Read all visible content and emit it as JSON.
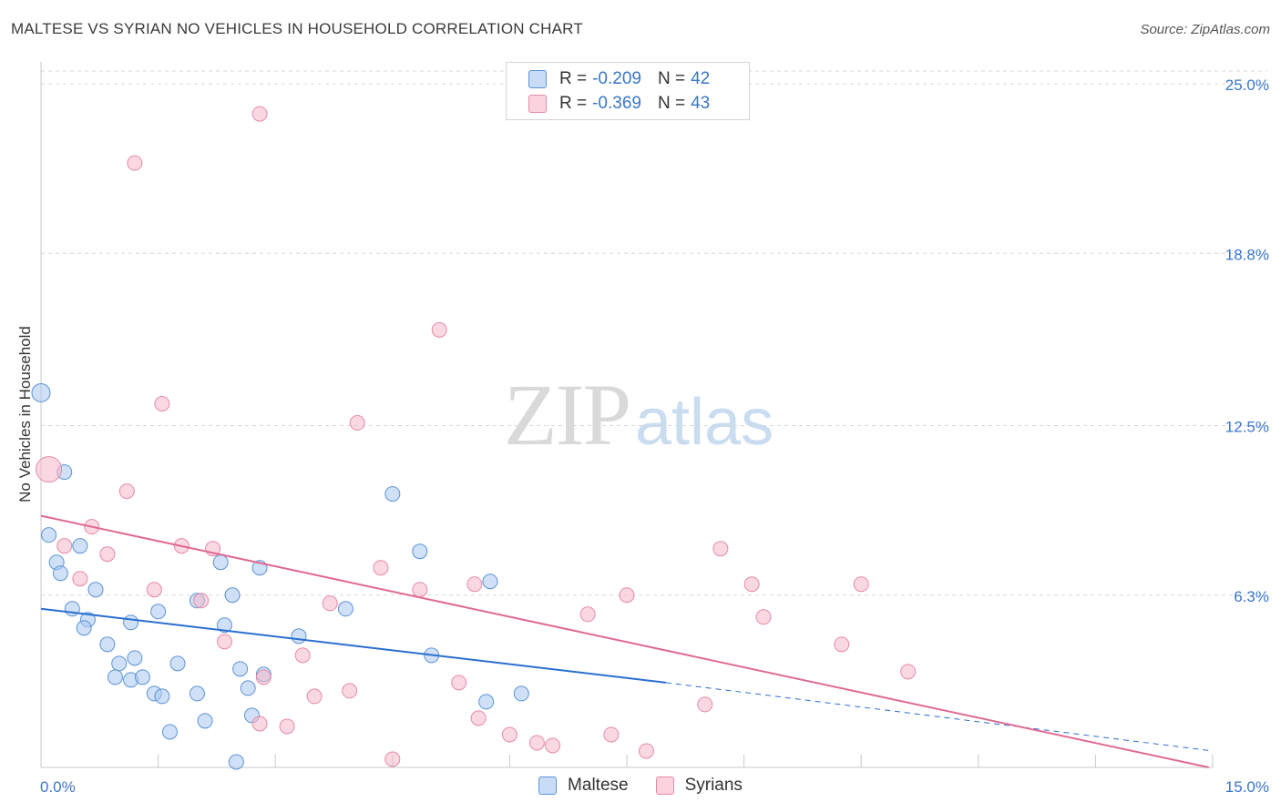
{
  "header": {
    "title": "MALTESE VS SYRIAN NO VEHICLES IN HOUSEHOLD CORRELATION CHART",
    "source": "Source: ZipAtlas.com"
  },
  "watermark": {
    "zip": "ZIP",
    "atlas": "atlas"
  },
  "legend": {
    "r_label": "R =",
    "n_label": "N =",
    "rows": [
      {
        "r": "-0.209",
        "n": "42",
        "color": "#a9c8f0"
      },
      {
        "r": "-0.369",
        "n": "43",
        "color": "#f6b8cb"
      }
    ]
  },
  "bottom_legend": {
    "items": [
      {
        "label": "Maltese",
        "color": "#a9c8f0"
      },
      {
        "label": "Syrians",
        "color": "#f6b8cb"
      }
    ]
  },
  "colors": {
    "maltese_fill": "#a9c8f0",
    "maltese_stroke": "#5b93d6",
    "maltese_line": "#2a6fd0",
    "syrian_fill": "#f6b8cb",
    "syrian_stroke": "#e68aa6",
    "syrian_line": "#e06a92",
    "tick_label": "#3a76c8",
    "grid": "#d8d8d8"
  },
  "chart_data": {
    "type": "scatter",
    "title": "MALTESE VS SYRIAN NO VEHICLES IN HOUSEHOLD CORRELATION CHART",
    "xlabel": "",
    "ylabel": "No Vehicles in Household",
    "xlim": [
      0,
      15
    ],
    "ylim": [
      0,
      25.8
    ],
    "x_tick_labels": [
      "0.0%",
      "15.0%"
    ],
    "y_ticks": [
      6.3,
      12.5,
      18.8,
      25.0
    ],
    "y_tick_labels": [
      "6.3%",
      "12.5%",
      "18.8%",
      "25.0%"
    ],
    "grid": "horizontal dashed",
    "legend_position": "top-center",
    "series": [
      {
        "name": "Maltese",
        "trend": {
          "x": [
            0,
            8.0
          ],
          "y": [
            5.8,
            3.1
          ],
          "dashed_to": [
            15,
            0.6
          ]
        },
        "points": [
          [
            0.0,
            13.7,
            10
          ],
          [
            0.3,
            10.8,
            8
          ],
          [
            0.1,
            8.5,
            8
          ],
          [
            0.5,
            8.1,
            8
          ],
          [
            0.2,
            7.5,
            8
          ],
          [
            0.25,
            7.1,
            8
          ],
          [
            0.7,
            6.5,
            8
          ],
          [
            0.4,
            5.8,
            8
          ],
          [
            0.6,
            5.4,
            8
          ],
          [
            0.55,
            5.1,
            8
          ],
          [
            0.85,
            4.5,
            8
          ],
          [
            1.15,
            5.3,
            8
          ],
          [
            1.5,
            5.7,
            8
          ],
          [
            2.0,
            6.1,
            8
          ],
          [
            2.3,
            7.5,
            8
          ],
          [
            2.45,
            6.3,
            8
          ],
          [
            2.8,
            7.3,
            8
          ],
          [
            2.35,
            5.2,
            8
          ],
          [
            1.2,
            4.0,
            8
          ],
          [
            1.0,
            3.8,
            8
          ],
          [
            1.75,
            3.8,
            8
          ],
          [
            0.95,
            3.3,
            8
          ],
          [
            1.15,
            3.2,
            8
          ],
          [
            1.3,
            3.3,
            8
          ],
          [
            1.45,
            2.7,
            8
          ],
          [
            1.55,
            2.6,
            8
          ],
          [
            2.0,
            2.7,
            8
          ],
          [
            2.55,
            3.6,
            8
          ],
          [
            2.65,
            2.9,
            8
          ],
          [
            2.85,
            3.4,
            8
          ],
          [
            1.65,
            1.3,
            8
          ],
          [
            2.1,
            1.7,
            8
          ],
          [
            2.7,
            1.9,
            8
          ],
          [
            2.5,
            0.2,
            8
          ],
          [
            3.3,
            4.8,
            8
          ],
          [
            3.9,
            5.8,
            8
          ],
          [
            4.5,
            10.0,
            8
          ],
          [
            4.85,
            7.9,
            8
          ],
          [
            5.0,
            4.1,
            8
          ],
          [
            5.75,
            6.8,
            8
          ],
          [
            5.7,
            2.4,
            8
          ],
          [
            6.15,
            2.7,
            8
          ]
        ]
      },
      {
        "name": "Syrians",
        "trend": {
          "x": [
            0,
            14.95
          ],
          "y": [
            9.2,
            0.0
          ]
        },
        "points": [
          [
            0.1,
            10.9,
            14
          ],
          [
            0.3,
            8.1,
            8
          ],
          [
            0.65,
            8.8,
            8
          ],
          [
            0.5,
            6.9,
            8
          ],
          [
            0.85,
            7.8,
            8
          ],
          [
            1.1,
            10.1,
            8
          ],
          [
            1.2,
            22.1,
            8
          ],
          [
            1.55,
            13.3,
            8
          ],
          [
            1.45,
            6.5,
            8
          ],
          [
            1.8,
            8.1,
            8
          ],
          [
            2.05,
            6.1,
            8
          ],
          [
            2.2,
            8.0,
            8
          ],
          [
            2.35,
            4.6,
            8
          ],
          [
            2.8,
            23.9,
            8
          ],
          [
            2.8,
            1.6,
            8
          ],
          [
            2.85,
            3.3,
            8
          ],
          [
            3.15,
            1.5,
            8
          ],
          [
            3.35,
            4.1,
            8
          ],
          [
            3.5,
            2.6,
            8
          ],
          [
            3.7,
            6.0,
            8
          ],
          [
            3.95,
            2.8,
            8
          ],
          [
            4.05,
            12.6,
            8
          ],
          [
            4.35,
            7.3,
            8
          ],
          [
            4.5,
            0.3,
            8
          ],
          [
            4.85,
            6.5,
            8
          ],
          [
            5.1,
            16.0,
            8
          ],
          [
            5.35,
            3.1,
            8
          ],
          [
            5.55,
            6.7,
            8
          ],
          [
            5.6,
            1.8,
            8
          ],
          [
            6.0,
            1.2,
            8
          ],
          [
            6.35,
            0.9,
            8
          ],
          [
            6.55,
            0.8,
            8
          ],
          [
            7.0,
            5.6,
            8
          ],
          [
            7.3,
            1.2,
            8
          ],
          [
            7.5,
            6.3,
            8
          ],
          [
            7.75,
            0.6,
            8
          ],
          [
            8.5,
            2.3,
            8
          ],
          [
            8.7,
            8.0,
            8
          ],
          [
            9.1,
            6.7,
            8
          ],
          [
            9.25,
            5.5,
            8
          ],
          [
            10.25,
            4.5,
            8
          ],
          [
            10.5,
            6.7,
            8
          ],
          [
            11.1,
            3.5,
            8
          ]
        ]
      }
    ]
  }
}
